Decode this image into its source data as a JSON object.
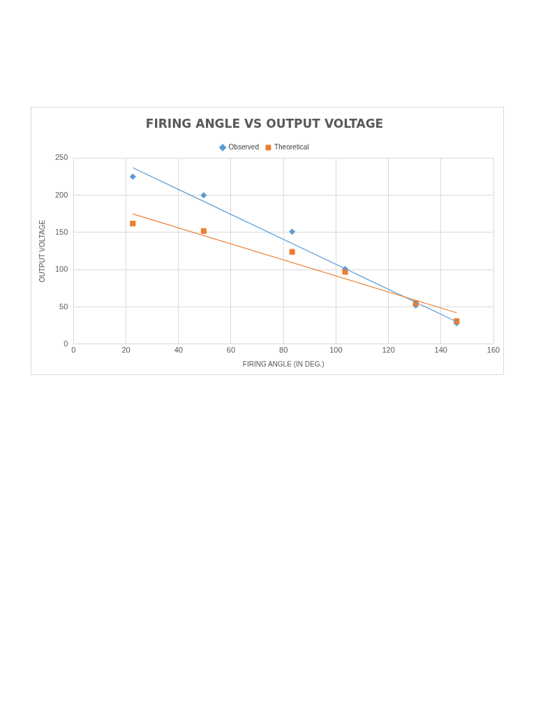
{
  "chart_data": {
    "type": "scatter",
    "title": "FIRING ANGLE VS OUTPUT VOLTAGE",
    "xlabel": "FIRING ANGLE (IN DEG.)",
    "ylabel": "OUTPUT VOLTAGE",
    "xlim": [
      0,
      160
    ],
    "xticks": [
      0,
      20,
      40,
      60,
      80,
      100,
      120,
      140,
      160
    ],
    "ylim": [
      0,
      250
    ],
    "yticks": [
      0,
      50,
      100,
      150,
      200,
      250
    ],
    "grid": true,
    "legend": "top",
    "series": [
      {
        "name": "Observed",
        "color": "#5b9bd5",
        "marker": "diamond",
        "x": [
          22.6,
          49.6,
          83.3,
          103.5,
          130.4,
          146
        ],
        "values": [
          225,
          200,
          151,
          101,
          52,
          28
        ]
      },
      {
        "name": "Theoretical",
        "color": "#ed7d31",
        "marker": "square",
        "x": [
          22.6,
          49.6,
          83.3,
          103.5,
          130.4,
          146
        ],
        "values": [
          162,
          152,
          124,
          97,
          55,
          31
        ]
      },
      {
        "type": "line",
        "color": "#5b9bd5",
        "marker": "none",
        "x": [
          22.6,
          146
        ],
        "values": [
          237,
          30
        ]
      },
      {
        "type": "line",
        "color": "#ed7d31",
        "marker": "none",
        "x": [
          22.6,
          146
        ],
        "values": [
          175,
          42
        ]
      }
    ]
  }
}
